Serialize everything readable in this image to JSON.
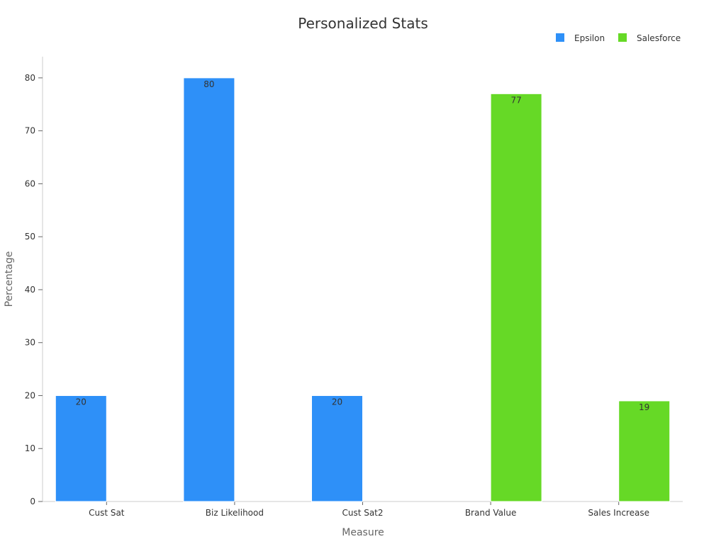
{
  "chart_data": {
    "type": "bar",
    "title": "Personalized Stats",
    "xlabel": "Measure",
    "ylabel": "Percentage",
    "categories": [
      "Cust Sat",
      "Biz Likelihood",
      "Cust Sat2",
      "Brand Value",
      "Sales Increase"
    ],
    "series": [
      {
        "name": "Epsilon",
        "color": "#2e90f8",
        "values": [
          20,
          80,
          20,
          null,
          null
        ]
      },
      {
        "name": "Salesforce",
        "color": "#66d926",
        "values": [
          null,
          null,
          null,
          77,
          19
        ]
      }
    ],
    "ylim": [
      0,
      84
    ],
    "yticks": [
      0,
      10,
      20,
      30,
      40,
      50,
      60,
      70,
      80
    ],
    "grid": false,
    "legend": "top-right",
    "data_labels": true
  }
}
